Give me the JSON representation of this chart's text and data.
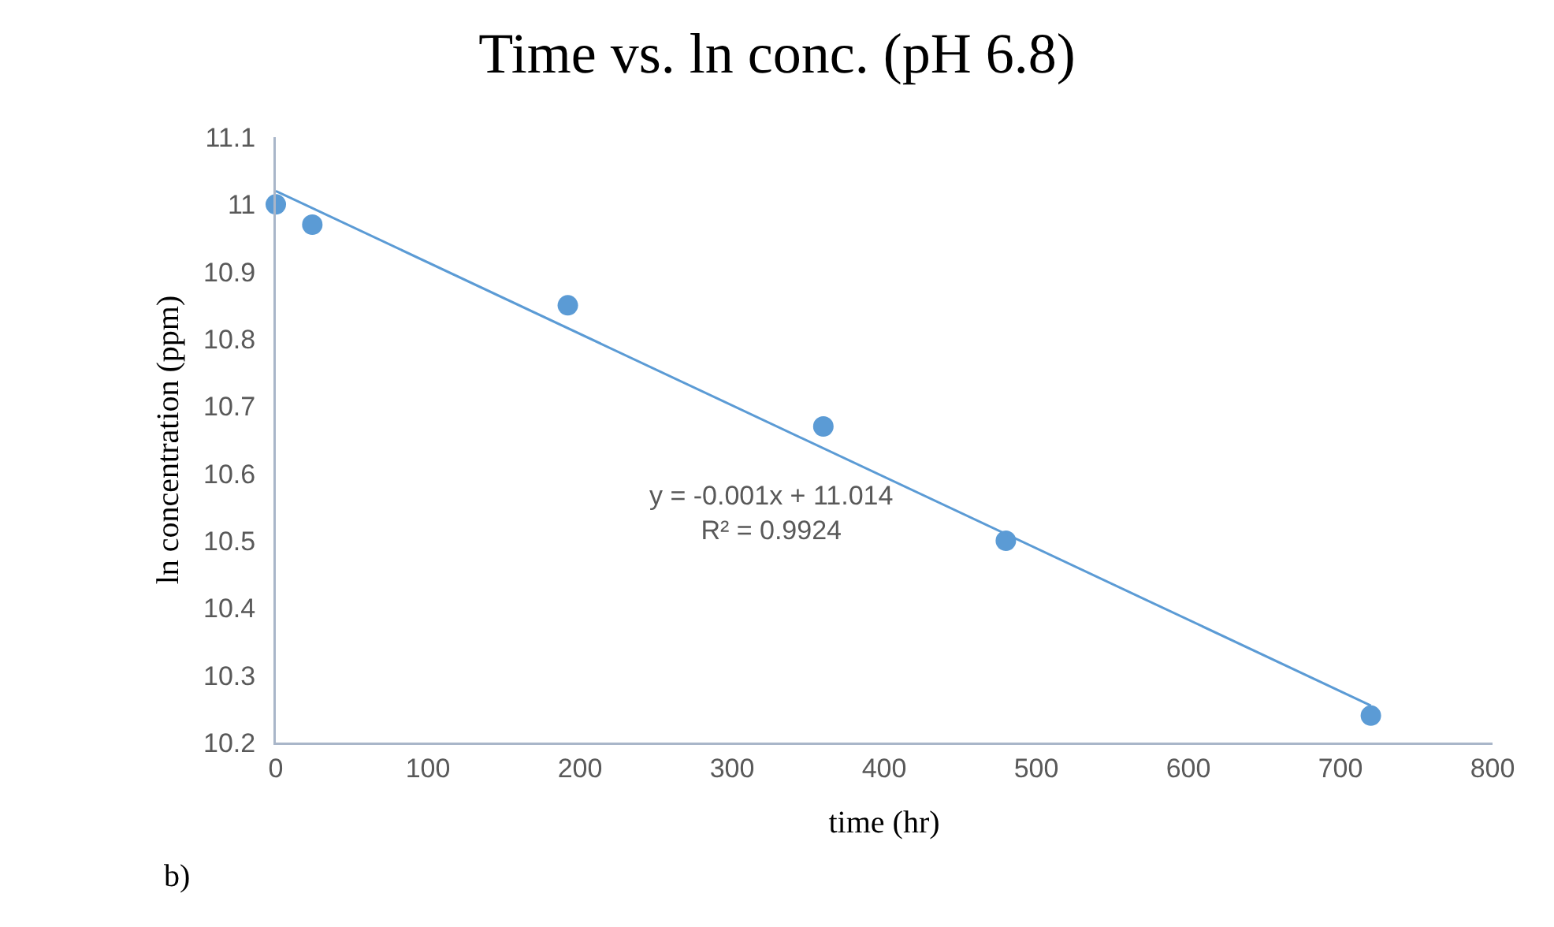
{
  "chart_data": {
    "type": "scatter",
    "title": "Time vs. ln conc. (pH 6.8)",
    "xlabel": "time (hr)",
    "ylabel": "ln concentration (ppm)",
    "x": [
      0,
      24,
      192,
      360,
      480,
      720
    ],
    "series": [
      {
        "color": "#5b9bd5",
        "marker": "circle",
        "values": [
          11.0,
          10.97,
          10.85,
          10.67,
          10.5,
          10.24
        ]
      },
      {
        "type": "line",
        "color": "#5b9bd5",
        "marker": "none",
        "x": [
          0,
          720
        ],
        "values": [
          11.02,
          10.255
        ]
      }
    ],
    "xlim": [
      0,
      800
    ],
    "xticks": [
      0,
      100,
      200,
      300,
      400,
      500,
      600,
      700,
      800
    ],
    "ylim": [
      10.2,
      11.1
    ],
    "yticks": [
      {
        "value": 10.2,
        "label": "10.2"
      },
      {
        "value": 10.3,
        "label": "10.3"
      },
      {
        "value": 10.4,
        "label": "10.4"
      },
      {
        "value": 10.5,
        "label": "10.5"
      },
      {
        "value": 10.6,
        "label": "10.6"
      },
      {
        "value": 10.7,
        "label": "10.7"
      },
      {
        "value": 10.8,
        "label": "10.8"
      },
      {
        "value": 10.9,
        "label": "10.9"
      },
      {
        "value": 11,
        "label": "11"
      },
      {
        "value": 11.1,
        "label": "11.1"
      }
    ],
    "grid": false,
    "annotations": [
      "y = -0.001x + 11.014\nR² = 0.9924",
      "b)"
    ]
  }
}
